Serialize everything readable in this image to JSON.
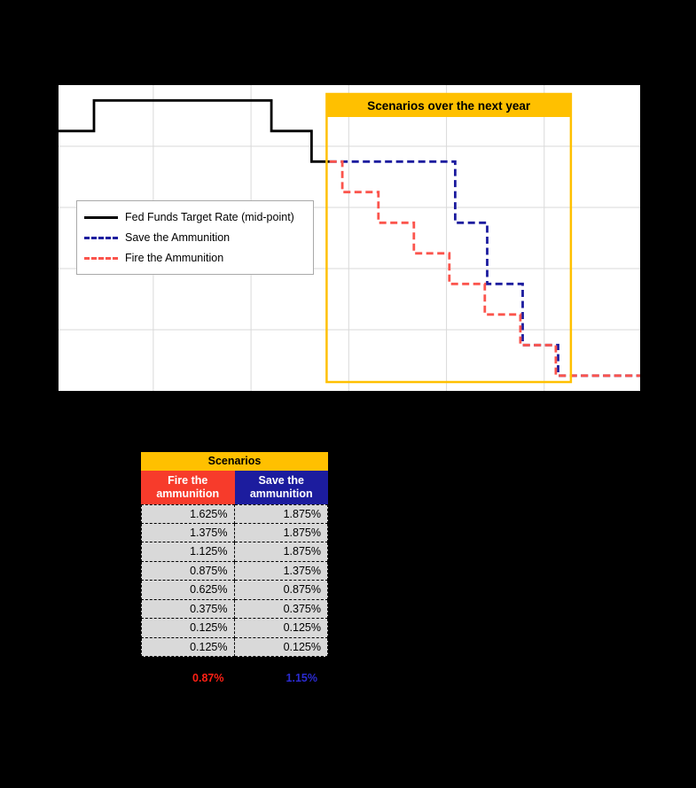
{
  "page": {
    "background": "#000000"
  },
  "chart_data": {
    "type": "line",
    "title": "",
    "plot_bg": "#ffffff",
    "grid": true,
    "grid_color": "#d9d9d9",
    "ylim": [
      0,
      2.5
    ],
    "xlim": [
      0,
      1
    ],
    "y_units": "percent",
    "y_gridlines": [
      0.5,
      1.0,
      1.5,
      2.0
    ],
    "x_gridlines": [
      0.163,
      0.331,
      0.499,
      0.667,
      0.835
    ],
    "legend_position": "left-middle",
    "series": [
      {
        "name": "Fed Funds Target Rate (mid-point)",
        "color": "#000000",
        "dash": "solid",
        "points": [
          [
            0,
            2.125
          ],
          [
            0.061,
            2.125
          ],
          [
            0.061,
            2.375
          ],
          [
            0.366,
            2.375
          ],
          [
            0.366,
            2.125
          ],
          [
            0.435,
            2.125
          ],
          [
            0.435,
            1.875
          ],
          [
            0.466,
            1.875
          ]
        ]
      },
      {
        "name": "Save the Ammunition",
        "color": "#1c1c9e",
        "dash": "dashed",
        "points": [
          [
            0.466,
            1.875
          ],
          [
            0.682,
            1.875
          ],
          [
            0.682,
            1.375
          ],
          [
            0.737,
            1.375
          ],
          [
            0.737,
            0.875
          ],
          [
            0.798,
            0.875
          ],
          [
            0.798,
            0.375
          ],
          [
            0.859,
            0.375
          ],
          [
            0.859,
            0.125
          ],
          [
            1,
            0.125
          ]
        ]
      },
      {
        "name": "Fire the Ammunition",
        "color": "#fb544c",
        "dash": "dashed",
        "points": [
          [
            0.466,
            1.875
          ],
          [
            0.488,
            1.875
          ],
          [
            0.488,
            1.625
          ],
          [
            0.55,
            1.625
          ],
          [
            0.55,
            1.375
          ],
          [
            0.611,
            1.375
          ],
          [
            0.611,
            1.125
          ],
          [
            0.672,
            1.125
          ],
          [
            0.672,
            0.875
          ],
          [
            0.733,
            0.875
          ],
          [
            0.733,
            0.625
          ],
          [
            0.794,
            0.625
          ],
          [
            0.794,
            0.375
          ],
          [
            0.855,
            0.375
          ],
          [
            0.855,
            0.125
          ],
          [
            1,
            0.125
          ]
        ]
      }
    ],
    "annotation_box": {
      "label": "Scenarios over the next year",
      "color": "#ffc000",
      "text_color": "#000000",
      "x_start": 0.461,
      "x_end": 0.881
    }
  },
  "table": {
    "title": "Scenarios",
    "title_bg": "#ffc000",
    "columns": [
      {
        "label": "Fire the ammunition",
        "bg": "#f73b2b",
        "text_color": "#ffffff"
      },
      {
        "label": "Save the ammunition",
        "bg": "#1c1c9e",
        "text_color": "#ffffff"
      }
    ],
    "row_bg": "#d9d9d9",
    "rows": [
      [
        "1.625%",
        "1.875%"
      ],
      [
        "1.375%",
        "1.875%"
      ],
      [
        "1.125%",
        "1.875%"
      ],
      [
        "0.875%",
        "1.375%"
      ],
      [
        "0.625%",
        "0.875%"
      ],
      [
        "0.375%",
        "0.375%"
      ],
      [
        "0.125%",
        "0.125%"
      ],
      [
        "0.125%",
        "0.125%"
      ]
    ],
    "averages": [
      {
        "value": "0.87%",
        "color": "#fe2015"
      },
      {
        "value": "1.15%",
        "color": "#2b2bd2"
      }
    ]
  }
}
